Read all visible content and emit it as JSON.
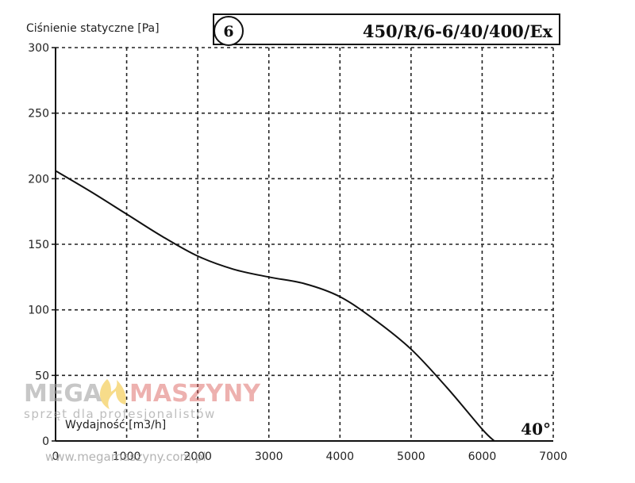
{
  "chart_data": {
    "type": "line",
    "ylabel": "Ciśnienie statyczne [Pa]",
    "xlabel": "Wydajność [m3/h]",
    "model_number": "6",
    "model_name": "450/R/6-6/40/400/Ex",
    "angle_label": "40°",
    "xlim": [
      0,
      7000
    ],
    "ylim": [
      0,
      300
    ],
    "x_ticks": [
      0,
      1000,
      2000,
      3000,
      4000,
      5000,
      6000,
      7000
    ],
    "y_ticks": [
      0,
      50,
      100,
      150,
      200,
      250,
      300
    ],
    "grid": true,
    "series": [
      {
        "x": [
          0,
          500,
          1000,
          1500,
          2000,
          2500,
          3000,
          3500,
          4000,
          4500,
          5000,
          5500,
          6000,
          6170
        ],
        "y": [
          206,
          190,
          173,
          156,
          141,
          131,
          125,
          120,
          110,
          92,
          70,
          41,
          9,
          0
        ]
      }
    ]
  },
  "watermark": {
    "brand_left": "MEGA",
    "brand_right": "MASZYNY",
    "tagline": "sprzęt dla profesjonalistów",
    "url": "www.megamaszyny.com.pl"
  },
  "colors": {
    "line": "#111111",
    "grid": "#222222",
    "watermark_red": "#d9534f",
    "watermark_flame": "#f2c94c"
  }
}
